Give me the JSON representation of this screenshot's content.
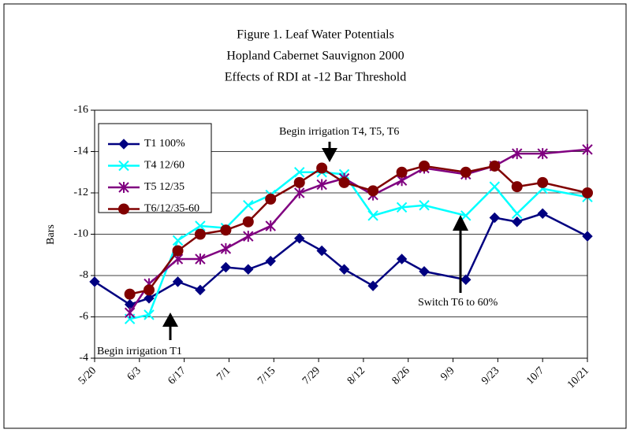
{
  "chart_data": {
    "type": "line",
    "title": [
      "Figure 1. Leaf Water Potentials",
      "Hopland Cabernet Sauvignon 2000",
      "Effects of RDI at -12 Bar Threshold"
    ],
    "y_label": "Bars",
    "x": [
      0,
      11,
      17,
      26,
      33,
      41,
      48,
      55,
      64,
      71,
      78,
      87,
      96,
      103,
      116,
      125,
      132,
      140,
      154
    ],
    "xlim": [
      0,
      154
    ],
    "xticks": [
      {
        "value": 0,
        "label": "5/20"
      },
      {
        "value": 14,
        "label": "6/3"
      },
      {
        "value": 28,
        "label": "6/17"
      },
      {
        "value": 42,
        "label": "7/1"
      },
      {
        "value": 56,
        "label": "7/15"
      },
      {
        "value": 70,
        "label": "7/29"
      },
      {
        "value": 84,
        "label": "8/12"
      },
      {
        "value": 98,
        "label": "8/26"
      },
      {
        "value": 112,
        "label": "9/9"
      },
      {
        "value": 126,
        "label": "9/23"
      },
      {
        "value": 140,
        "label": "10/7"
      },
      {
        "value": 154,
        "label": "10/21"
      }
    ],
    "ylim": [
      -4,
      -16
    ],
    "yticks": [
      -4,
      -6,
      -8,
      -10,
      -12,
      -14,
      -16
    ],
    "grid": true,
    "series": [
      {
        "name": "T1 100%",
        "color": "#000080",
        "marker": "diamond",
        "values": [
          -7.7,
          -6.6,
          -6.9,
          -7.7,
          -7.3,
          -8.4,
          -8.3,
          -8.7,
          -9.8,
          -9.2,
          -8.3,
          -7.5,
          -8.8,
          -8.2,
          -7.8,
          -10.8,
          -10.6,
          -11.0,
          -9.9
        ]
      },
      {
        "name": "T4 12/60",
        "color": "#00FFFF",
        "marker": "x",
        "values": [
          null,
          -5.9,
          -6.1,
          -9.7,
          -10.4,
          -10.3,
          -11.4,
          -11.9,
          -13.0,
          -13.0,
          -12.9,
          -10.9,
          -11.3,
          -11.4,
          -10.9,
          -12.3,
          -11.0,
          -12.2,
          -11.8
        ]
      },
      {
        "name": "T5 12/35",
        "color": "#800080",
        "marker": "star",
        "values": [
          null,
          -6.2,
          -7.6,
          -8.8,
          -8.8,
          -9.3,
          -9.9,
          -10.4,
          -12.0,
          -12.4,
          -12.7,
          -11.9,
          -12.6,
          -13.2,
          -12.9,
          -13.3,
          -13.9,
          -13.9,
          -14.1
        ]
      },
      {
        "name": "T6/12/35-60",
        "color": "#800000",
        "marker": "circle",
        "values": [
          null,
          -7.1,
          -7.3,
          -9.2,
          -10.0,
          -10.2,
          -10.6,
          -11.7,
          -12.5,
          -13.2,
          -12.5,
          -12.1,
          -13.0,
          -13.3,
          -13.0,
          -13.3,
          -12.3,
          -12.5,
          -12.0
        ]
      }
    ],
    "annotations": [
      "Begin irrigation T4, T5,  T6",
      "Switch T6 to 60%",
      "Begin irrigation T1"
    ]
  }
}
